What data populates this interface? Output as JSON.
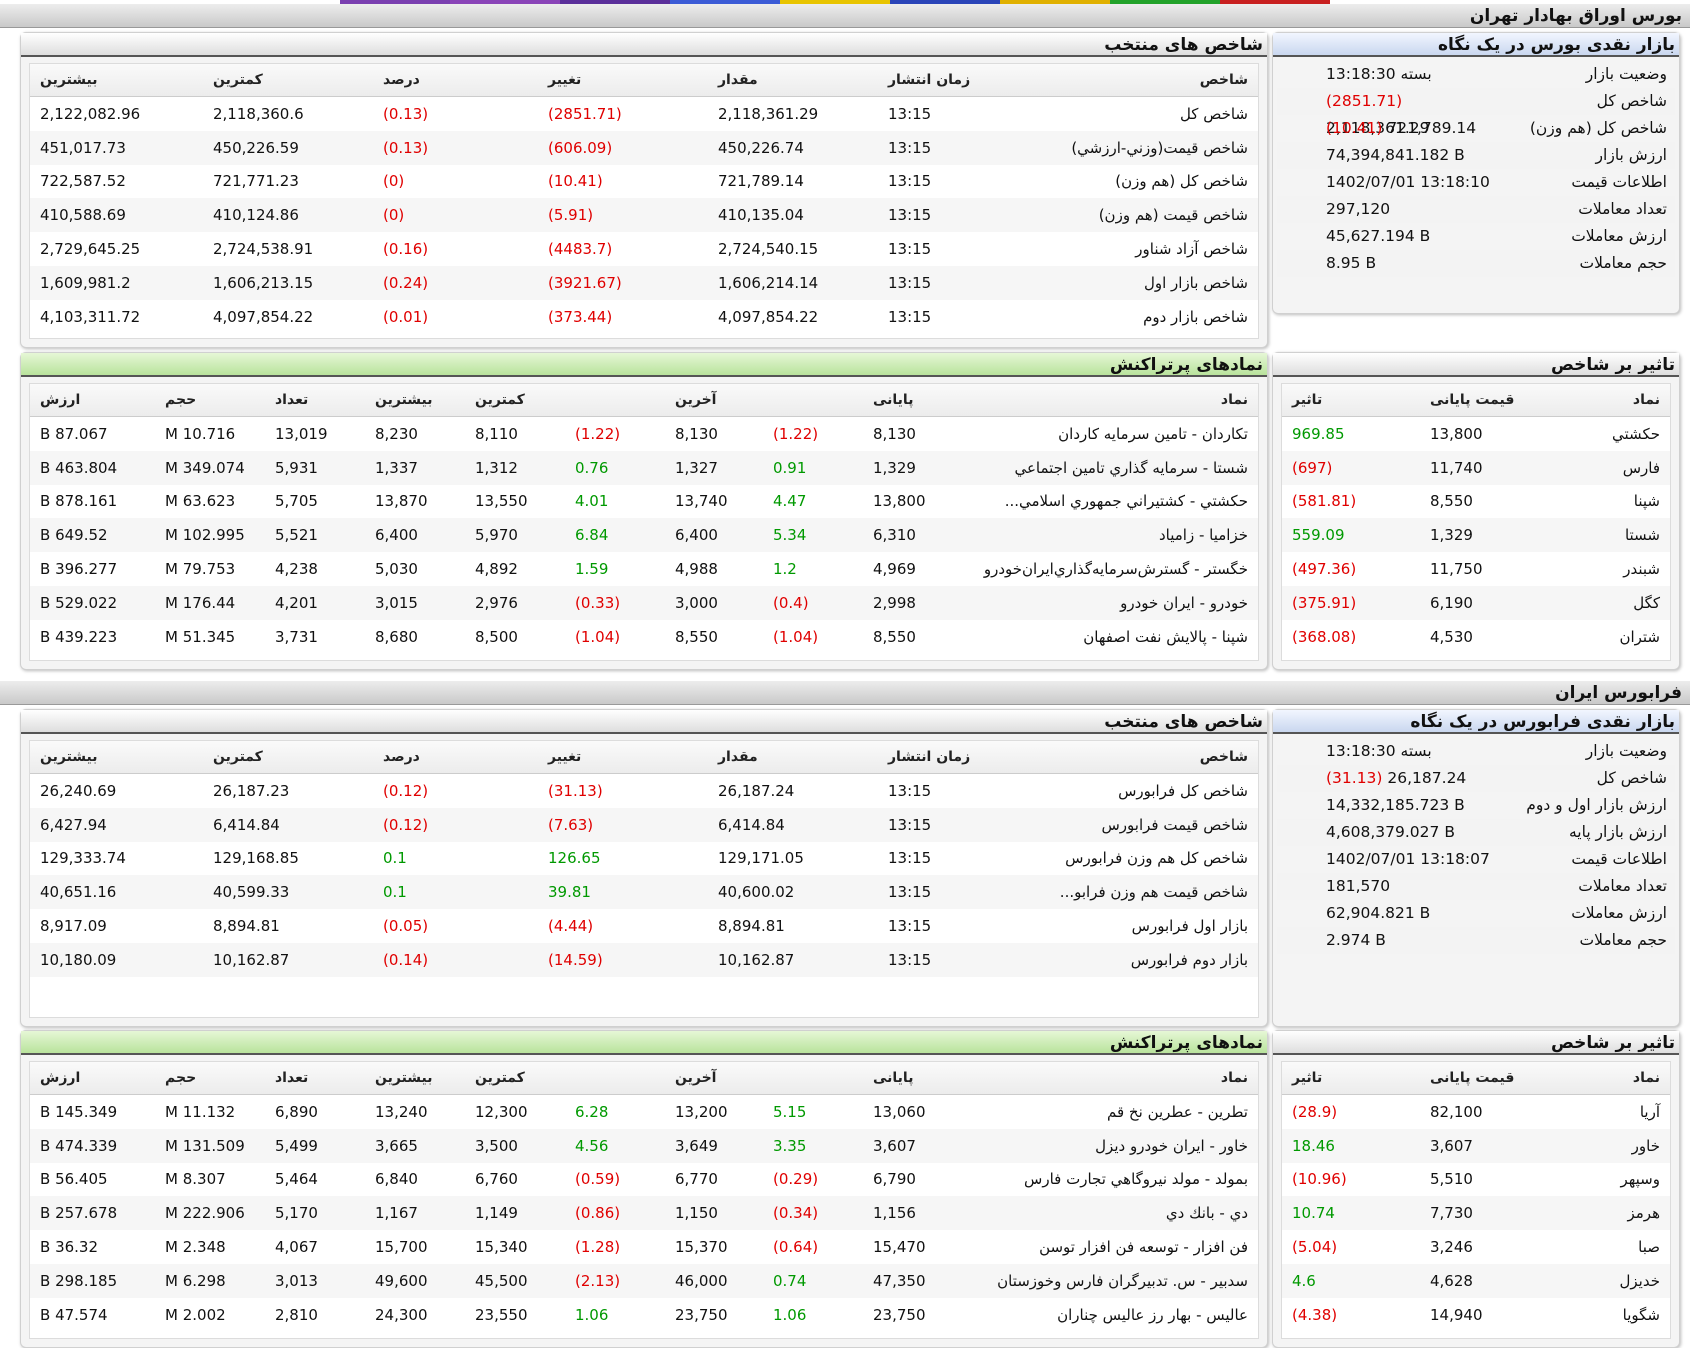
{
  "top_strip_colors": [
    "#7a3fb0",
    "#8a44b8",
    "#5a2f9a",
    "#3b5bd6",
    "#e8c400",
    "#2a44b8",
    "#e0b000",
    "#22a22a",
    "#c82020"
  ],
  "tehran": {
    "title": "بورس اوراق بهادار تهران",
    "glance": {
      "title": "بازار نقدی بورس در یک نگاه",
      "rows": [
        {
          "label": "وضعیت بازار",
          "value": "بسته 13:18:30",
          "change": ""
        },
        {
          "label": "شاخص کل",
          "value": "2,118,361.29",
          "change": "(2851.71)"
        },
        {
          "label": "شاخص کل (هم وزن)",
          "value": "721,789.14",
          "change": "(10.41)"
        },
        {
          "label": "ارزش بازار",
          "value": "74,394,841.182 B",
          "change": ""
        },
        {
          "label": "اطلاعات قیمت",
          "value": "1402/07/01 13:18:10",
          "change": ""
        },
        {
          "label": "تعداد معاملات",
          "value": "297,120",
          "change": ""
        },
        {
          "label": "ارزش معاملات",
          "value": "45,627.194 B",
          "change": ""
        },
        {
          "label": "حجم معاملات",
          "value": "8.95 B",
          "change": ""
        }
      ]
    },
    "indices": {
      "title": "شاخص های منتخب",
      "headers": [
        "شاخص",
        "زمان انتشار",
        "مقدار",
        "تغییر",
        "درصد",
        "کمترین",
        "بیشترین"
      ],
      "rows": [
        [
          "شاخص كل",
          "13:15",
          "2,118,361.29",
          "(2851.71)",
          "(0.13)",
          "2,118,360.6",
          "2,122,082.96"
        ],
        [
          "شاخص قيمت(وزني-ارزشي)",
          "13:15",
          "450,226.74",
          "(606.09)",
          "(0.13)",
          "450,226.59",
          "451,017.73"
        ],
        [
          "شاخص كل (هم وزن)",
          "13:15",
          "721,789.14",
          "(10.41)",
          "(0)",
          "721,771.23",
          "722,587.52"
        ],
        [
          "شاخص قيمت (هم وزن)",
          "13:15",
          "410,135.04",
          "(5.91)",
          "(0)",
          "410,124.86",
          "410,588.69"
        ],
        [
          "شاخص آزاد شناور",
          "13:15",
          "2,724,540.15",
          "(4483.7)",
          "(0.16)",
          "2,724,538.91",
          "2,729,645.25"
        ],
        [
          "شاخص بازار اول",
          "13:15",
          "1,606,214.14",
          "(3921.67)",
          "(0.24)",
          "1,606,213.15",
          "1,609,981.2"
        ],
        [
          "شاخص بازار دوم",
          "13:15",
          "4,097,854.22",
          "(373.44)",
          "(0.01)",
          "4,097,854.22",
          "4,103,311.72"
        ]
      ]
    },
    "impact": {
      "title": "تاثیر بر شاخص",
      "headers": [
        "نماد",
        "قیمت پایانی",
        "تاثیر"
      ],
      "rows": [
        [
          "حكشتي",
          "13,800",
          "969.85"
        ],
        [
          "فارس",
          "11,740",
          "(697)"
        ],
        [
          "شپنا",
          "8,550",
          "(581.81)"
        ],
        [
          "شستا",
          "1,329",
          "559.09"
        ],
        [
          "شبندر",
          "11,750",
          "(497.36)"
        ],
        [
          "كگل",
          "6,190",
          "(375.91)"
        ],
        [
          "شتران",
          "4,530",
          "(368.08)"
        ]
      ]
    },
    "traded": {
      "title": "نمادهای پرتراکنش",
      "headers": [
        "نماد",
        "پایانی",
        "",
        "آخرین",
        "",
        "کمترین",
        "بیشترین",
        "تعداد",
        "حجم",
        "ارزش"
      ],
      "rows": [
        [
          "تكاردان - تامين سرمايه كاردان",
          "8,130",
          "(1.22)",
          "8,130",
          "(1.22)",
          "8,110",
          "8,230",
          "13,019",
          "10.716 M",
          "87.067 B"
        ],
        [
          "شستا - سرمايه گذاري تامين اجتماعي",
          "1,329",
          "0.91",
          "1,327",
          "0.76",
          "1,312",
          "1,337",
          "5,931",
          "349.074 M",
          "463.804 B"
        ],
        [
          "حكشتي - كشتيراني جمهوري اسلامي...",
          "13,800",
          "4.47",
          "13,740",
          "4.01",
          "13,550",
          "13,870",
          "5,705",
          "63.623 M",
          "878.161 B"
        ],
        [
          "خزاميا - زامياد",
          "6,310",
          "5.34",
          "6,400",
          "6.84",
          "5,970",
          "6,400",
          "5,521",
          "102.995 M",
          "649.52 B"
        ],
        [
          "خگستر - گسترش‌سرمايه‌گذاري‌ايران‌خودرو",
          "4,969",
          "1.2",
          "4,988",
          "1.59",
          "4,892",
          "5,030",
          "4,238",
          "79.753 M",
          "396.277 B"
        ],
        [
          "خودرو - ايران‌ خودرو",
          "2,998",
          "(0.4)",
          "3,000",
          "(0.33)",
          "2,976",
          "3,015",
          "4,201",
          "176.44 M",
          "529.022 B"
        ],
        [
          "شپنا - پالايش نفت اصفهان",
          "8,550",
          "(1.04)",
          "8,550",
          "(1.04)",
          "8,500",
          "8,680",
          "3,731",
          "51.345 M",
          "439.223 B"
        ]
      ]
    }
  },
  "farabourse": {
    "title": "فرابورس ایران",
    "glance": {
      "title": "بازار نقدی فرابورس در یک نگاه",
      "rows": [
        {
          "label": "وضعیت بازار",
          "value": "بسته 13:18:30",
          "change": ""
        },
        {
          "label": "شاخص کل",
          "value": "26,187.24",
          "change": "(31.13)"
        },
        {
          "label": "ارزش بازار اول و دوم",
          "value": "14,332,185.723 B",
          "change": ""
        },
        {
          "label": "ارزش بازار پایه",
          "value": "4,608,379.027 B",
          "change": ""
        },
        {
          "label": "اطلاعات قیمت",
          "value": "1402/07/01 13:18:07",
          "change": ""
        },
        {
          "label": "تعداد معاملات",
          "value": "181,570",
          "change": ""
        },
        {
          "label": "ارزش معاملات",
          "value": "62,904.821 B",
          "change": ""
        },
        {
          "label": "حجم معاملات",
          "value": "2.974 B",
          "change": ""
        }
      ]
    },
    "indices": {
      "title": "شاخص های منتخب",
      "headers": [
        "شاخص",
        "زمان انتشار",
        "مقدار",
        "تغییر",
        "درصد",
        "کمترین",
        "بیشترین"
      ],
      "rows": [
        [
          "شاخص كل فرابورس",
          "13:15",
          "26,187.24",
          "(31.13)",
          "(0.12)",
          "26,187.23",
          "26,240.69"
        ],
        [
          "شاخص قيمت فرابورس",
          "13:15",
          "6,414.84",
          "(7.63)",
          "(0.12)",
          "6,414.84",
          "6,427.94"
        ],
        [
          "شاخص كل هم وزن فرابورس",
          "13:15",
          "129,171.05",
          "126.65",
          "0.1",
          "129,168.85",
          "129,333.74"
        ],
        [
          "شاخص قيمت هم وزن فرابو...",
          "13:15",
          "40,600.02",
          "39.81",
          "0.1",
          "40,599.33",
          "40,651.16"
        ],
        [
          "بازار اول فرابورس",
          "13:15",
          "8,894.81",
          "(4.44)",
          "(0.05)",
          "8,894.81",
          "8,917.09"
        ],
        [
          "بازار دوم فرابورس",
          "13:15",
          "10,162.87",
          "(14.59)",
          "(0.14)",
          "10,162.87",
          "10,180.09"
        ]
      ]
    },
    "impact": {
      "title": "تاثیر بر شاخص",
      "headers": [
        "نماد",
        "قیمت پایانی",
        "تاثیر"
      ],
      "rows": [
        [
          "آريا",
          "82,100",
          "(28.9)"
        ],
        [
          "خاور",
          "3,607",
          "18.46"
        ],
        [
          "وسپهر",
          "5,510",
          "(10.96)"
        ],
        [
          "هرمز",
          "7,730",
          "10.74"
        ],
        [
          "صبا",
          "3,246",
          "(5.04)"
        ],
        [
          "خديزل",
          "4,628",
          "4.6"
        ],
        [
          "شگويا",
          "14,940",
          "(4.38)"
        ]
      ]
    },
    "traded": {
      "title": "نمادهای پرتراکنش",
      "headers": [
        "نماد",
        "پایانی",
        "",
        "آخرین",
        "",
        "کمترین",
        "بیشترین",
        "تعداد",
        "حجم",
        "ارزش"
      ],
      "rows": [
        [
          "تطرين - عطرين نخ قم",
          "13,060",
          "5.15",
          "13,200",
          "6.28",
          "12,300",
          "13,240",
          "6,890",
          "11.132 M",
          "145.349 B"
        ],
        [
          "خاور - ايران‌ خودرو ديزل",
          "3,607",
          "3.35",
          "3,649",
          "4.56",
          "3,500",
          "3,665",
          "5,499",
          "131.509 M",
          "474.339 B"
        ],
        [
          "بمولد - مولد نيروگاهي تجارت فارس",
          "6,790",
          "(0.29)",
          "6,770",
          "(0.59)",
          "6,760",
          "6,840",
          "5,464",
          "8.307 M",
          "56.405 B"
        ],
        [
          "دي - بانك دي",
          "1,156",
          "(0.34)",
          "1,150",
          "(0.86)",
          "1,149",
          "1,167",
          "5,170",
          "222.906 M",
          "257.678 B"
        ],
        [
          "فن افزار - توسعه فن افزار توسن",
          "15,470",
          "(0.64)",
          "15,370",
          "(1.28)",
          "15,340",
          "15,700",
          "4,067",
          "2.348 M",
          "36.32 B"
        ],
        [
          "سدبير - س. تدبيرگران فارس وخوزستان",
          "47,350",
          "0.74",
          "46,000",
          "(2.13)",
          "45,500",
          "49,600",
          "3,013",
          "6.298 M",
          "298.185 B"
        ],
        [
          "عاليس - بهار رز عاليس چناران",
          "23,750",
          "1.06",
          "23,750",
          "1.06",
          "23,550",
          "24,300",
          "2,810",
          "2.002 M",
          "47.574 B"
        ]
      ]
    }
  }
}
